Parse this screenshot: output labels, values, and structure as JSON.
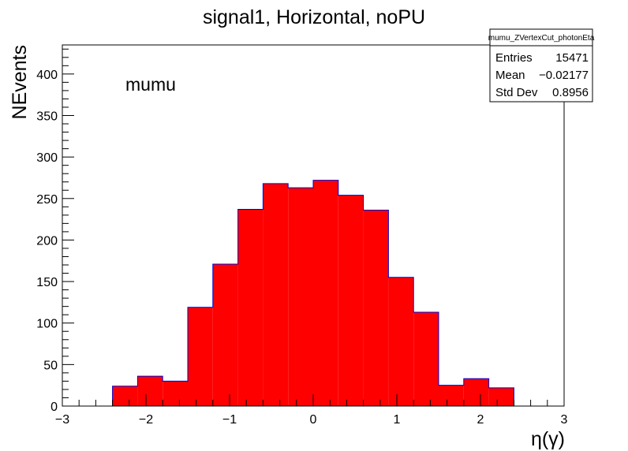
{
  "chart_data": {
    "type": "bar",
    "title": "signal1, Horizontal, noPU",
    "xlabel": "η(γ)",
    "ylabel": "NEvents",
    "annotation": "mumu",
    "xlim": [
      -3,
      3
    ],
    "ylim": [
      0,
      435
    ],
    "x_ticks": [
      -3,
      -2,
      -1,
      0,
      1,
      2,
      3
    ],
    "y_ticks": [
      0,
      50,
      100,
      150,
      200,
      250,
      300,
      350,
      400
    ],
    "grid": false,
    "fill_color": "#ff0000",
    "line_color": "#0000cc",
    "bins": [
      {
        "lo": -2.4,
        "hi": -2.1,
        "value": 24
      },
      {
        "lo": -2.1,
        "hi": -1.8,
        "value": 36
      },
      {
        "lo": -1.8,
        "hi": -1.5,
        "value": 30
      },
      {
        "lo": -1.5,
        "hi": -1.2,
        "value": 119
      },
      {
        "lo": -1.2,
        "hi": -0.9,
        "value": 171
      },
      {
        "lo": -0.9,
        "hi": -0.6,
        "value": 237
      },
      {
        "lo": -0.6,
        "hi": -0.3,
        "value": 268
      },
      {
        "lo": -0.3,
        "hi": 0.0,
        "value": 263
      },
      {
        "lo": 0.0,
        "hi": 0.3,
        "value": 272
      },
      {
        "lo": 0.3,
        "hi": 0.6,
        "value": 254
      },
      {
        "lo": 0.6,
        "hi": 0.9,
        "value": 236
      },
      {
        "lo": 0.9,
        "hi": 1.2,
        "value": 155
      },
      {
        "lo": 1.2,
        "hi": 1.5,
        "value": 113
      },
      {
        "lo": 1.5,
        "hi": 1.8,
        "value": 25
      },
      {
        "lo": 1.8,
        "hi": 2.1,
        "value": 33
      },
      {
        "lo": 2.1,
        "hi": 2.4,
        "value": 22
      }
    ],
    "stats_box": {
      "name": "mumu_ZVertexCut_photonEta",
      "rows": [
        {
          "label": "Entries",
          "value": "15471"
        },
        {
          "label": "Mean",
          "value": "−0.02177"
        },
        {
          "label": "Std Dev",
          "value": "0.8956"
        }
      ]
    }
  }
}
